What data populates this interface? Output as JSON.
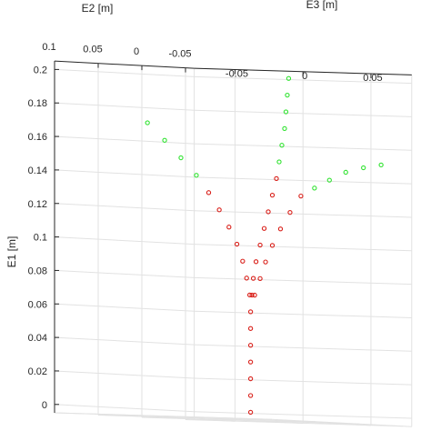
{
  "chart_data": {
    "type": "scatter",
    "projection": "3d",
    "grid": true,
    "axes": {
      "e1": {
        "label": "E1 [m]",
        "range": [
          -0.005,
          0.205
        ],
        "ticks": [
          "0",
          "0.02",
          "0.04",
          "0.06",
          "0.08",
          "0.1",
          "0.12",
          "0.14",
          "0.16",
          "0.18",
          "0.2"
        ]
      },
      "e2": {
        "label": "E2 [m]",
        "range": [
          -0.06,
          0.1
        ],
        "ticks": [
          "0.1",
          "0.05",
          "0",
          "-0.05"
        ]
      },
      "e3": {
        "label": "E3 [m]",
        "range": [
          -0.08,
          0.08
        ],
        "ticks": [
          "-0.05",
          "0",
          "0.05"
        ]
      }
    },
    "colors": {
      "red": "#d9201a",
      "green": "#33e333",
      "grid": "#e2e2e2",
      "axis": "#262626"
    },
    "series": [
      {
        "color_key": "red",
        "points": [
          [
            0,
            0,
            0
          ],
          [
            0.01,
            0,
            0
          ],
          [
            0.02,
            0,
            0
          ],
          [
            0.03,
            0,
            0
          ],
          [
            0.04,
            0,
            0
          ],
          [
            0.05,
            0,
            0
          ],
          [
            0.06,
            0,
            0
          ],
          [
            0.07,
            0.001,
            0
          ],
          [
            0.08,
            0.003,
            -0.001
          ],
          [
            0.09,
            0.006,
            -0.002
          ],
          [
            0.1,
            0.011,
            -0.003
          ],
          [
            0.11,
            0.017,
            -0.005
          ],
          [
            0.12,
            0.025,
            -0.007
          ],
          [
            0.13,
            0.034,
            -0.009
          ]
        ]
      },
      {
        "color_key": "green",
        "points": [
          [
            0.14,
            0.045,
            -0.011
          ],
          [
            0.15,
            0.058,
            -0.014
          ],
          [
            0.16,
            0.072,
            -0.017
          ],
          [
            0.17,
            0.087,
            -0.02
          ]
        ]
      },
      {
        "color_key": "red",
        "points": [
          [
            0.07,
            0,
            0.001
          ],
          [
            0.08,
            0,
            0.002
          ],
          [
            0.09,
            0,
            0.004
          ],
          [
            0.1,
            0,
            0.007
          ],
          [
            0.11,
            0,
            0.01
          ],
          [
            0.12,
            0,
            0.013
          ],
          [
            0.13,
            0,
            0.016
          ],
          [
            0.14,
            0,
            0.019
          ]
        ]
      },
      {
        "color_key": "green",
        "points": [
          [
            0.15,
            0,
            0.021
          ],
          [
            0.16,
            0,
            0.023
          ],
          [
            0.17,
            0,
            0.025
          ],
          [
            0.18,
            0,
            0.026
          ],
          [
            0.19,
            0,
            0.027
          ],
          [
            0.2,
            0,
            0.028
          ]
        ]
      },
      {
        "color_key": "red",
        "points": [
          [
            0.07,
            0,
            0.003
          ],
          [
            0.08,
            0,
            0.007
          ],
          [
            0.09,
            0,
            0.011
          ],
          [
            0.1,
            0,
            0.016
          ],
          [
            0.11,
            0,
            0.022
          ],
          [
            0.12,
            0,
            0.029
          ],
          [
            0.13,
            0,
            0.037
          ]
        ]
      },
      {
        "color_key": "green",
        "points": [
          [
            0.135,
            0,
            0.047
          ],
          [
            0.14,
            0,
            0.058
          ],
          [
            0.145,
            0,
            0.07
          ],
          [
            0.148,
            0,
            0.083
          ],
          [
            0.15,
            0,
            0.096
          ]
        ]
      }
    ]
  }
}
